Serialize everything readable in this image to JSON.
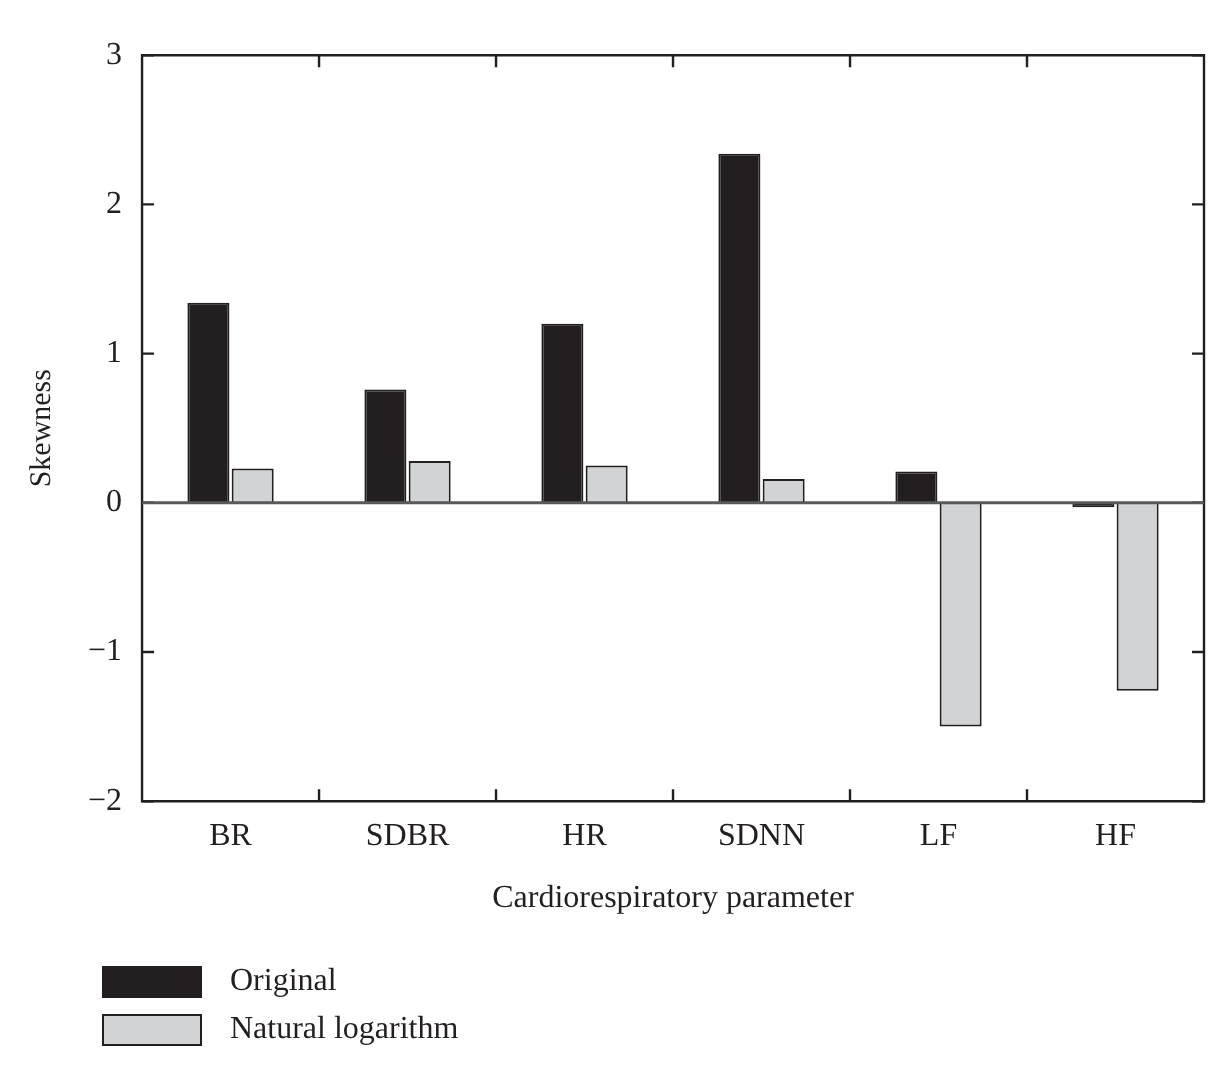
{
  "chart_data": {
    "type": "bar",
    "xlabel": "Cardiorespiratory parameter",
    "ylabel": "Skewness",
    "categories": [
      "BR",
      "SDBR",
      "HR",
      "SDNN",
      "LF",
      "HF"
    ],
    "series": [
      {
        "name": "Original",
        "color": "#231f20",
        "values": [
          1.34,
          0.76,
          1.2,
          2.34,
          0.21,
          -0.03
        ]
      },
      {
        "name": "Natural logarithm",
        "color": "#d1d3d4",
        "values": [
          0.23,
          0.28,
          0.25,
          0.16,
          -1.5,
          -1.26
        ]
      }
    ],
    "ylim": [
      -2,
      3
    ],
    "yticks": [
      {
        "value": -2,
        "label": "−2"
      },
      {
        "value": -1,
        "label": "−1"
      },
      0,
      1,
      2,
      3
    ],
    "legend": "bottom left"
  }
}
